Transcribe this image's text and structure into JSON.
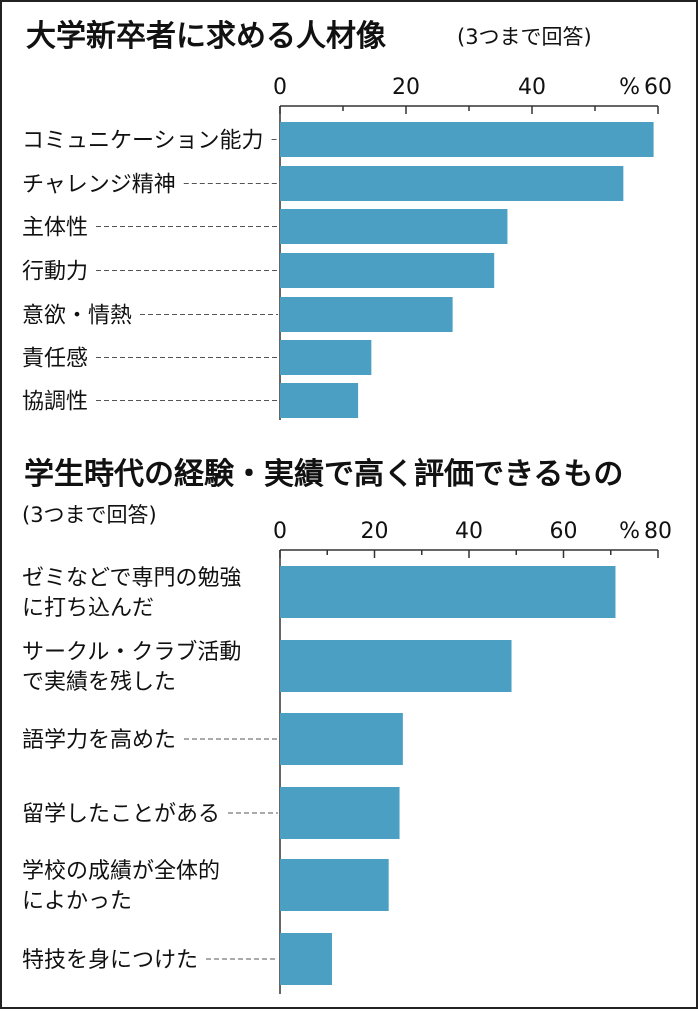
{
  "chart_data": [
    {
      "type": "bar",
      "title": "大学新卒者に求める人材像",
      "subtitle": "(3つまで回答)",
      "unit": "%",
      "xlim": [
        0,
        60
      ],
      "ticks": [
        "0",
        "20",
        "40",
        "60"
      ],
      "categories": [
        [
          "コミュニケーション能力"
        ],
        [
          "チャレンジ精神"
        ],
        [
          "主体性"
        ],
        [
          "行動力"
        ],
        [
          "意欲・情熱"
        ],
        [
          "責任感"
        ],
        [
          "協調性"
        ]
      ],
      "values": [
        59.3,
        54.5,
        36.1,
        34.0,
        27.4,
        14.5,
        12.4
      ],
      "color": "#4a9fc3"
    },
    {
      "type": "bar",
      "title": "学生時代の経験・実績で高く評価できるもの",
      "subtitle": "(3つまで回答)",
      "unit": "%",
      "xlim": [
        0,
        80
      ],
      "ticks": [
        "0",
        "20",
        "40",
        "60",
        "80"
      ],
      "categories": [
        [
          "ゼミなどで専門の勉強",
          "に打ち込んだ"
        ],
        [
          "サークル・クラブ活動",
          "で実績を残した"
        ],
        [
          "語学力を高めた"
        ],
        [
          "留学したことがある"
        ],
        [
          "学校の成績が全体的",
          "によかった"
        ],
        [
          "特技を身につけた"
        ]
      ],
      "values": [
        71.0,
        49.0,
        26.0,
        25.3,
        23.0,
        11.0
      ],
      "color": "#4a9fc3"
    }
  ]
}
